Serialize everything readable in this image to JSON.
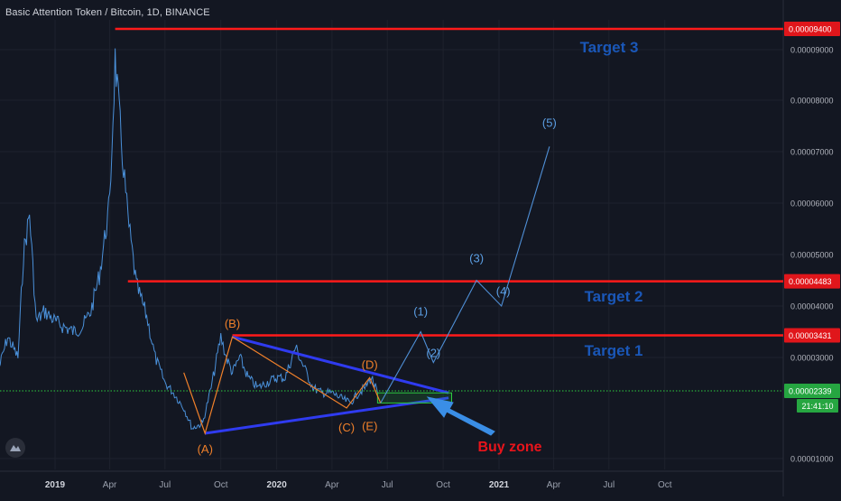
{
  "header": {
    "symbol_title": "Basic Attention Token / Bitcoin, 1D, BINANCE"
  },
  "colors": {
    "background": "#131722",
    "grid": "#1e222d",
    "price_line": "#4a90d9",
    "wave_orange": "#f0802a",
    "wave_blue_projection": "#4f8fd6",
    "triangle_line": "#2f3bf0",
    "target_line": "#ff1a1a",
    "target_label_text": "#1a57b8",
    "current_price_line": "#2ecc40",
    "buy_zone_text": "#e8141b",
    "arrow": "#3a8ee6"
  },
  "icons": {
    "logo": "tradingview-logo-icon",
    "arrow": "buy-zone-arrow-icon"
  },
  "chart_data": {
    "type": "line",
    "title": "Basic Attention Token / Bitcoin, 1D, BINANCE",
    "xlabel": "",
    "ylabel": "",
    "x_tick_labels": [
      "2019",
      "Apr",
      "Jul",
      "Oct",
      "2020",
      "Apr",
      "Jul",
      "Oct",
      "2021",
      "Apr",
      "Jul",
      "Oct"
    ],
    "y_tick_labels": [
      "0.00001000",
      "0.00003000",
      "0.00004000",
      "0.00005000",
      "0.00006000",
      "0.00007000",
      "0.00008000",
      "0.00009000"
    ],
    "ylim": [
      7.5e-06,
      9.7e-06
    ],
    "grid": true,
    "price_series": {
      "name": "",
      "x": [
        "2018-10-01",
        "2018-10-15",
        "2018-11-01",
        "2018-11-10",
        "2018-11-20",
        "2018-12-01",
        "2018-12-15",
        "2019-01-01",
        "2019-01-15",
        "2019-02-01",
        "2019-02-15",
        "2019-03-01",
        "2019-03-15",
        "2019-04-01",
        "2019-04-10",
        "2019-04-20",
        "2019-05-01",
        "2019-05-15",
        "2019-06-01",
        "2019-06-15",
        "2019-07-01",
        "2019-07-15",
        "2019-08-01",
        "2019-08-15",
        "2019-09-01",
        "2019-09-15",
        "2019-10-01",
        "2019-10-10",
        "2019-10-20",
        "2019-11-01",
        "2019-11-15",
        "2019-12-01",
        "2019-12-15",
        "2020-01-01",
        "2020-01-15",
        "2020-02-01",
        "2020-02-15",
        "2020-03-01",
        "2020-03-15",
        "2020-04-01",
        "2020-04-15",
        "2020-05-01",
        "2020-05-15",
        "2020-05-25",
        "2020-06-05",
        "2020-06-15"
      ],
      "values": [
        2.8e-06,
        3.4e-06,
        3e-06,
        5e-06,
        5.8e-06,
        3.7e-06,
        3.9e-06,
        3.7e-06,
        3.6e-06,
        3.5e-06,
        3.6e-06,
        3.9e-06,
        4.6e-06,
        6e-06,
        8.8e-06,
        7.2e-06,
        5.7e-06,
        4.4e-06,
        3.8e-06,
        3e-06,
        2.5e-06,
        2.3e-06,
        2e-06,
        1.6e-06,
        1.7e-06,
        2.4e-06,
        3.4e-06,
        3e-06,
        2.7e-06,
        3e-06,
        2.6e-06,
        2.4e-06,
        2.5e-06,
        2.6e-06,
        2.6e-06,
        3.2e-06,
        2.8e-06,
        2.4e-06,
        2.3e-06,
        2.3e-06,
        2.2e-06,
        2.1e-06,
        2.3e-06,
        2.4e-06,
        2.6e-06,
        2.3e-06
      ]
    },
    "corrective_wave": {
      "name": "",
      "points": [
        {
          "label": "",
          "x": "2019-08-01",
          "y": 2.7e-06
        },
        {
          "label": "(A)",
          "x": "2019-09-05",
          "y": 1.5e-06
        },
        {
          "label": "(B)",
          "x": "2019-10-20",
          "y": 3.4e-06
        },
        {
          "label": "(C)",
          "x": "2020-04-25",
          "y": 2e-06
        },
        {
          "label": "(D)",
          "x": "2020-06-02",
          "y": 2.6e-06
        },
        {
          "label": "(E)",
          "x": "2020-06-20",
          "y": 2.1e-06
        }
      ]
    },
    "projection_wave": {
      "name": "",
      "points": [
        {
          "label": "",
          "x": "2020-06-20",
          "y": 2.1e-06
        },
        {
          "label": "(1)",
          "x": "2020-08-25",
          "y": 3.5e-06
        },
        {
          "label": "(2)",
          "x": "2020-09-15",
          "y": 2.9e-06
        },
        {
          "label": "(3)",
          "x": "2020-11-25",
          "y": 4.5e-06
        },
        {
          "label": "(4)",
          "x": "2021-01-05",
          "y": 4e-06
        },
        {
          "label": "(5)",
          "x": "2021-03-25",
          "y": 7.1e-06
        }
      ]
    },
    "triangle_lines": [
      {
        "x1": "2019-09-05",
        "y1": 1.5e-06,
        "x2": "2020-10-10",
        "y2": 2.2e-06
      },
      {
        "x1": "2019-10-20",
        "y1": 3.4e-06,
        "x2": "2020-10-10",
        "y2": 2.3e-06
      }
    ],
    "buy_zone": {
      "label": "Buy zone",
      "x1": "2020-06-15",
      "x2": "2020-10-15",
      "y1": 2.1e-06,
      "y2": 2.3e-06
    },
    "target_lines": [
      {
        "label": "Target 3",
        "price_label": "0.00009400",
        "value": 9.4e-06,
        "x_start": "2019-04-10"
      },
      {
        "label": "Target 2",
        "price_label": "0.00004483",
        "value": 4.48e-06,
        "x_start": "2019-05-01"
      },
      {
        "label": "Target 1",
        "price_label": "0.00003431",
        "value": 3.43e-06,
        "x_start": "2019-10-20"
      }
    ],
    "current_price": {
      "price_label": "0.00002339",
      "value": 2.34e-06,
      "countdown": "21:41:10"
    }
  }
}
